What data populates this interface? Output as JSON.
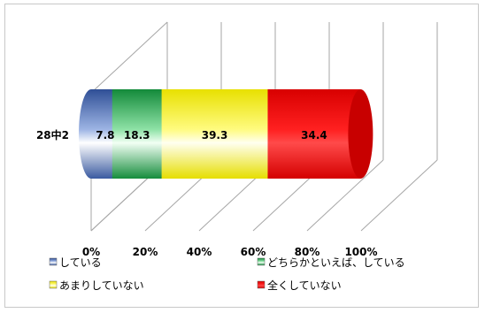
{
  "chart_data": {
    "type": "bar",
    "orientation": "horizontal",
    "stacked": "percent",
    "style": "3d-cylinder",
    "categories": [
      "28中2"
    ],
    "series": [
      {
        "name": "している",
        "values": [
          7.8
        ],
        "color": "#5a80c8"
      },
      {
        "name": "どちらかといえば、している",
        "values": [
          18.3
        ],
        "color": "#2fb45a"
      },
      {
        "name": "あまりしていない",
        "values": [
          39.3
        ],
        "color": "#f2f000"
      },
      {
        "name": "全くしていない",
        "values": [
          34.4
        ],
        "color": "#ee0000"
      }
    ],
    "x_ticks": [
      "0%",
      "20%",
      "40%",
      "60%",
      "80%",
      "100%"
    ],
    "xlim": [
      0,
      100
    ],
    "grid": true,
    "legend_position": "bottom"
  }
}
